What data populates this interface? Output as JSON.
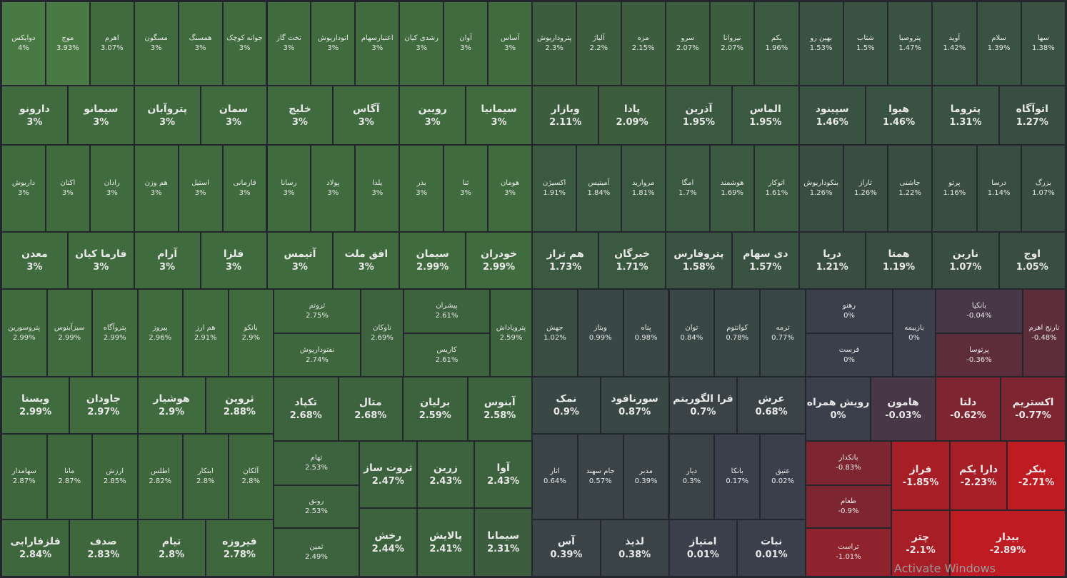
{
  "cells": [
    {
      "name": "دوایکس",
      "change": "4%",
      "color": "#4a7a44"
    },
    {
      "name": "موج",
      "change": "3.93%",
      "color": "#4a7a44"
    },
    {
      "name": "اهرم",
      "change": "3.07%",
      "color": "#3f6b3e"
    },
    {
      "name": "مسگون",
      "change": "3%",
      "color": "#3f6b3e"
    },
    {
      "name": "همسنگ",
      "change": "3%",
      "color": "#3f6b3e"
    },
    {
      "name": "جوانه کوچک",
      "change": "3%",
      "color": "#3f6b3e"
    },
    {
      "name": "تخت گاز",
      "change": "3%",
      "color": "#3f6b3e"
    },
    {
      "name": "اتوداریوش",
      "change": "3%",
      "color": "#3f6b3e"
    },
    {
      "name": "اعتبارسهام",
      "change": "3%",
      "color": "#3f6b3e"
    },
    {
      "name": "رشدی کیان",
      "change": "3%",
      "color": "#3f6b3e"
    },
    {
      "name": "آوان",
      "change": "3%",
      "color": "#3f6b3e"
    },
    {
      "name": "آساس",
      "change": "3%",
      "color": "#3f6b3e"
    },
    {
      "name": "پتروداریوش",
      "change": "2.3%",
      "color": "#3c5e3f"
    },
    {
      "name": "آلیاژ",
      "change": "2.2%",
      "color": "#3c5e3f"
    },
    {
      "name": "مزه",
      "change": "2.15%",
      "color": "#3c5e3f"
    },
    {
      "name": "سرو",
      "change": "2.07%",
      "color": "#3c5e3f"
    },
    {
      "name": "نیروانا",
      "change": "2.07%",
      "color": "#3c5e3f"
    },
    {
      "name": "یکم",
      "change": "1.96%",
      "color": "#3b5840"
    },
    {
      "name": "بهین رو",
      "change": "1.53%",
      "color": "#3a5241"
    },
    {
      "name": "شتاب",
      "change": "1.5%",
      "color": "#3a5241"
    },
    {
      "name": "پتروصبا",
      "change": "1.47%",
      "color": "#3a5241"
    },
    {
      "name": "آوید",
      "change": "1.42%",
      "color": "#3a5241"
    },
    {
      "name": "سلام",
      "change": "1.39%",
      "color": "#3a5241"
    },
    {
      "name": "سها",
      "change": "1.38%",
      "color": "#3a5241"
    },
    {
      "name": "دارونو",
      "change": "3%",
      "color": "#3f6b3e"
    },
    {
      "name": "سیمانو",
      "change": "3%",
      "color": "#3f6b3e"
    },
    {
      "name": "پتروآبان",
      "change": "3%",
      "color": "#3f6b3e"
    },
    {
      "name": "سمان",
      "change": "3%",
      "color": "#3f6b3e"
    },
    {
      "name": "خلیج",
      "change": "3%",
      "color": "#3f6b3e"
    },
    {
      "name": "آگاس",
      "change": "3%",
      "color": "#3f6b3e"
    },
    {
      "name": "رویین",
      "change": "3%",
      "color": "#3f6b3e"
    },
    {
      "name": "سیمانیا",
      "change": "3%",
      "color": "#3f6b3e"
    },
    {
      "name": "وبازار",
      "change": "2.11%",
      "color": "#3c5e3f"
    },
    {
      "name": "پادا",
      "change": "2.09%",
      "color": "#3c5e3f"
    },
    {
      "name": "آذرین",
      "change": "1.95%",
      "color": "#3b5840"
    },
    {
      "name": "الماس",
      "change": "1.95%",
      "color": "#3b5840"
    },
    {
      "name": "سپینود",
      "change": "1.46%",
      "color": "#3a5241"
    },
    {
      "name": "هیوا",
      "change": "1.46%",
      "color": "#3a5241"
    },
    {
      "name": "پتروما",
      "change": "1.31%",
      "color": "#3a5241"
    },
    {
      "name": "اتوآگاه",
      "change": "1.27%",
      "color": "#3a4d43"
    },
    {
      "name": "داریوش",
      "change": "3%",
      "color": "#3f6b3e"
    },
    {
      "name": "اکتان",
      "change": "3%",
      "color": "#3f6b3e"
    },
    {
      "name": "رادان",
      "change": "3%",
      "color": "#3f6b3e"
    },
    {
      "name": "هم وزن",
      "change": "3%",
      "color": "#3f6b3e"
    },
    {
      "name": "استیل",
      "change": "3%",
      "color": "#3f6b3e"
    },
    {
      "name": "فارمانی",
      "change": "3%",
      "color": "#3f6b3e"
    },
    {
      "name": "رسانا",
      "change": "3%",
      "color": "#3f6b3e"
    },
    {
      "name": "پولاد",
      "change": "3%",
      "color": "#3f6b3e"
    },
    {
      "name": "یلدا",
      "change": "3%",
      "color": "#3f6b3e"
    },
    {
      "name": "بذر",
      "change": "3%",
      "color": "#3f6b3e"
    },
    {
      "name": "ثنا",
      "change": "3%",
      "color": "#3f6b3e"
    },
    {
      "name": "هومان",
      "change": "3%",
      "color": "#3f6b3e"
    },
    {
      "name": "اکسیژن",
      "change": "1.91%",
      "color": "#3b5840"
    },
    {
      "name": "آمیتیس",
      "change": "1.84%",
      "color": "#3b5840"
    },
    {
      "name": "مروارید",
      "change": "1.81%",
      "color": "#3b5840"
    },
    {
      "name": "امگا",
      "change": "1.7%",
      "color": "#3b5840"
    },
    {
      "name": "هوشمند",
      "change": "1.69%",
      "color": "#3b5840"
    },
    {
      "name": "اتوکار",
      "change": "1.61%",
      "color": "#3b5840"
    },
    {
      "name": "بنکوداریوش",
      "change": "1.26%",
      "color": "#3a4d43"
    },
    {
      "name": "تاراز",
      "change": "1.26%",
      "color": "#3a4d43"
    },
    {
      "name": "جاشنی",
      "change": "1.22%",
      "color": "#3a4d43"
    },
    {
      "name": "پرتو",
      "change": "1.16%",
      "color": "#3a4d43"
    },
    {
      "name": "درسا",
      "change": "1.14%",
      "color": "#3a4d43"
    },
    {
      "name": "بزرگ",
      "change": "1.07%",
      "color": "#3a4d43"
    },
    {
      "name": "معدن",
      "change": "3%",
      "color": "#3f6b3e"
    },
    {
      "name": "فارما کیان",
      "change": "3%",
      "color": "#3f6b3e"
    },
    {
      "name": "آرام",
      "change": "3%",
      "color": "#3f6b3e"
    },
    {
      "name": "فلزا",
      "change": "3%",
      "color": "#3f6b3e"
    },
    {
      "name": "آتیمس",
      "change": "3%",
      "color": "#3f6b3e"
    },
    {
      "name": "افق ملت",
      "change": "3%",
      "color": "#3f6b3e"
    },
    {
      "name": "سیمان",
      "change": "2.99%",
      "color": "#3f6b3e"
    },
    {
      "name": "خودران",
      "change": "2.99%",
      "color": "#3f6b3e"
    },
    {
      "name": "هم تراز",
      "change": "1.73%",
      "color": "#3b5840"
    },
    {
      "name": "خبرگان",
      "change": "1.71%",
      "color": "#3b5840"
    },
    {
      "name": "پتروفارس",
      "change": "1.58%",
      "color": "#3a5241"
    },
    {
      "name": "دی سهام",
      "change": "1.57%",
      "color": "#3a5241"
    },
    {
      "name": "دریا",
      "change": "1.21%",
      "color": "#3a4d43"
    },
    {
      "name": "همتا",
      "change": "1.19%",
      "color": "#3a4d43"
    },
    {
      "name": "نارین",
      "change": "1.07%",
      "color": "#3a4d43"
    },
    {
      "name": "اوج",
      "change": "1.05%",
      "color": "#3a4d43"
    },
    {
      "name": "پتروسورین",
      "change": "2.99%",
      "color": "#3f6b3e"
    },
    {
      "name": "سیزآبنوس",
      "change": "2.99%",
      "color": "#3f6b3e"
    },
    {
      "name": "پتروآگاه",
      "change": "2.99%",
      "color": "#3f6b3e"
    },
    {
      "name": "پیروز",
      "change": "2.96%",
      "color": "#3f6b3e"
    },
    {
      "name": "هم ارز",
      "change": "2.91%",
      "color": "#3f6b3e"
    },
    {
      "name": "بانکو",
      "change": "2.9%",
      "color": "#3f6b3e"
    },
    {
      "name": "ویستا",
      "change": "2.99%",
      "color": "#3f6b3e"
    },
    {
      "name": "جاودان",
      "change": "2.97%",
      "color": "#3f6b3e"
    },
    {
      "name": "هوشیار",
      "change": "2.9%",
      "color": "#3f6b3e"
    },
    {
      "name": "ثروین",
      "change": "2.88%",
      "color": "#3e673e"
    },
    {
      "name": "سهامدار",
      "change": "2.87%",
      "color": "#3e673e"
    },
    {
      "name": "مانا",
      "change": "2.87%",
      "color": "#3e673e"
    },
    {
      "name": "ارزش",
      "change": "2.85%",
      "color": "#3e673e"
    },
    {
      "name": "اطلس",
      "change": "2.82%",
      "color": "#3e673e"
    },
    {
      "name": "ابتکار",
      "change": "2.8%",
      "color": "#3e673e"
    },
    {
      "name": "آلکان",
      "change": "2.8%",
      "color": "#3e673e"
    },
    {
      "name": "فلزفارابی",
      "change": "2.84%",
      "color": "#3e673e"
    },
    {
      "name": "صدف",
      "change": "2.83%",
      "color": "#3e673e"
    },
    {
      "name": "تیام",
      "change": "2.8%",
      "color": "#3e673e"
    },
    {
      "name": "فیروزه",
      "change": "2.78%",
      "color": "#3e673e"
    },
    {
      "name": "ثروتم",
      "change": "2.75%",
      "color": "#3e673e"
    },
    {
      "name": "نفتوداریوش",
      "change": "2.74%",
      "color": "#3e673e"
    },
    {
      "name": "ناوکان",
      "change": "2.69%",
      "color": "#3d633e"
    },
    {
      "name": "پیشران",
      "change": "2.61%",
      "color": "#3d633e"
    },
    {
      "name": "کاریس",
      "change": "2.61%",
      "color": "#3d633e"
    },
    {
      "name": "پترویاداش",
      "change": "2.59%",
      "color": "#3d633e"
    },
    {
      "name": "تکپاد",
      "change": "2.68%",
      "color": "#3d633e"
    },
    {
      "name": "متال",
      "change": "2.68%",
      "color": "#3d633e"
    },
    {
      "name": "برلیان",
      "change": "2.59%",
      "color": "#3d633e"
    },
    {
      "name": "آبنوس",
      "change": "2.58%",
      "color": "#3d633e"
    },
    {
      "name": "تهام",
      "change": "2.53%",
      "color": "#3d633e"
    },
    {
      "name": "رونق",
      "change": "2.53%",
      "color": "#3d633e"
    },
    {
      "name": "ثمین",
      "change": "2.49%",
      "color": "#3d633e"
    },
    {
      "name": "ثروت ساز",
      "change": "2.47%",
      "color": "#3d633e"
    },
    {
      "name": "زرین",
      "change": "2.43%",
      "color": "#3d633e"
    },
    {
      "name": "آوا",
      "change": "2.43%",
      "color": "#3d633e"
    },
    {
      "name": "رخش",
      "change": "2.44%",
      "color": "#3d633e"
    },
    {
      "name": "پالایش",
      "change": "2.41%",
      "color": "#3d633e"
    },
    {
      "name": "سیمانا",
      "change": "2.31%",
      "color": "#3c5e3f"
    },
    {
      "name": "جهش",
      "change": "1.02%",
      "color": "#3a4d43"
    },
    {
      "name": "وبتاز",
      "change": "0.99%",
      "color": "#3a4845"
    },
    {
      "name": "پناه",
      "change": "0.98%",
      "color": "#3a4845"
    },
    {
      "name": "توان",
      "change": "0.84%",
      "color": "#3a4845"
    },
    {
      "name": "کوانتوم",
      "change": "0.78%",
      "color": "#3a4845"
    },
    {
      "name": "ترمه",
      "change": "0.77%",
      "color": "#3a4845"
    },
    {
      "name": "نمک",
      "change": "0.9%",
      "color": "#3a4845"
    },
    {
      "name": "سورنافود",
      "change": "0.87%",
      "color": "#3a4845"
    },
    {
      "name": "فرا الگوریتم",
      "change": "0.7%",
      "color": "#3a4447"
    },
    {
      "name": "عرش",
      "change": "0.68%",
      "color": "#3a4447"
    },
    {
      "name": "اتار",
      "change": "0.64%",
      "color": "#3a4447"
    },
    {
      "name": "جام سهند",
      "change": "0.57%",
      "color": "#3a4447"
    },
    {
      "name": "مدبر",
      "change": "0.39%",
      "color": "#3a4447"
    },
    {
      "name": "دیار",
      "change": "0.3%",
      "color": "#3a4447"
    },
    {
      "name": "بانکا",
      "change": "0.17%",
      "color": "#3a3f4b"
    },
    {
      "name": "عتیق",
      "change": "0.02%",
      "color": "#3a3f4b"
    },
    {
      "name": "آس",
      "change": "0.39%",
      "color": "#3a4447"
    },
    {
      "name": "لذیذ",
      "change": "0.38%",
      "color": "#3a4447"
    },
    {
      "name": "امتیاز",
      "change": "0.01%",
      "color": "#3a3f4b"
    },
    {
      "name": "نبات",
      "change": "0.01%",
      "color": "#3a3f4b"
    },
    {
      "name": "رهنو",
      "change": "0%",
      "color": "#3a3f4b"
    },
    {
      "name": "فرست",
      "change": "0%",
      "color": "#3a3f4b"
    },
    {
      "name": "بازبیمه",
      "change": "0%",
      "color": "#3a3f4b"
    },
    {
      "name": "بانکیا",
      "change": "-0.04%",
      "color": "#473747"
    },
    {
      "name": "پرتوسا",
      "change": "-0.36%",
      "color": "#5e2d3b"
    },
    {
      "name": "نارنج اهرم",
      "change": "-0.48%",
      "color": "#5e2d3b"
    },
    {
      "name": "رویش همراه",
      "change": "0%",
      "color": "#3a3f4b"
    },
    {
      "name": "هامون",
      "change": "-0.03%",
      "color": "#473747"
    },
    {
      "name": "دلتا",
      "change": "-0.62%",
      "color": "#7d2631"
    },
    {
      "name": "اکستریم",
      "change": "-0.77%",
      "color": "#7d2631"
    },
    {
      "name": "بانکدار",
      "change": "-0.83%",
      "color": "#7d2631"
    },
    {
      "name": "طعام",
      "change": "-0.9%",
      "color": "#7d2631"
    },
    {
      "name": "تراست",
      "change": "-1.01%",
      "color": "#8e232d"
    },
    {
      "name": "فراز",
      "change": "-1.85%",
      "color": "#a81e27"
    },
    {
      "name": "دارا یکم",
      "change": "-2.23%",
      "color": "#a81e27"
    },
    {
      "name": "بنکر",
      "change": "-2.71%",
      "color": "#be1b23"
    },
    {
      "name": "چتر",
      "change": "-2.1%",
      "color": "#a81e27"
    },
    {
      "name": "بیدار",
      "change": "-2.89%",
      "color": "#be1b23"
    }
  ],
  "overlay_text": "Activate Windows"
}
